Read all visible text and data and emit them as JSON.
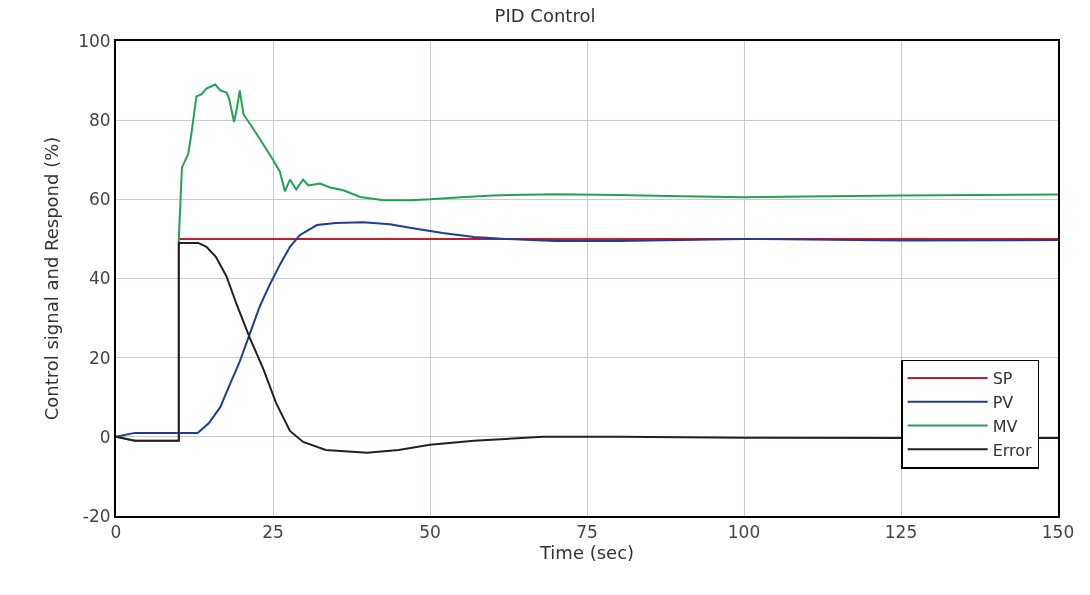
{
  "chart_data": {
    "type": "line",
    "title": "PID Control",
    "xlabel": "Time (sec)",
    "ylabel": "Control signal and Respond (%)",
    "xlim": [
      0,
      150
    ],
    "xticks": [
      0,
      25,
      50,
      75,
      100,
      125,
      150
    ],
    "ylim": [
      -20,
      100
    ],
    "yticks": [
      -20,
      0,
      20,
      40,
      60,
      80,
      100
    ],
    "grid": true,
    "legend": "bottom right",
    "marker": "none",
    "line_style": "solid",
    "series": [
      {
        "name": "SP",
        "color": "#c0202e",
        "x": [
          10,
          150
        ],
        "values": [
          50,
          50
        ]
      },
      {
        "name": "PV",
        "color": "#1f3c99",
        "x": [
          0,
          3,
          10,
          13,
          14.8,
          16.6,
          18.2,
          19.7,
          21.3,
          22.9,
          24.5,
          26.1,
          27.7,
          29.3,
          32,
          35,
          39.4,
          43.6,
          46.8,
          52,
          57,
          62,
          70,
          80,
          100,
          125,
          150
        ],
        "values": [
          0,
          1,
          1,
          1,
          3.5,
          7.5,
          13.5,
          19,
          26,
          33,
          38.5,
          43.5,
          48,
          51,
          53.5,
          54,
          54.2,
          53.7,
          52.8,
          51.5,
          50.5,
          50,
          49.5,
          49.5,
          50,
          49.6,
          49.7
        ]
      },
      {
        "name": "MV",
        "color": "#1fa355",
        "x": [
          0,
          3,
          10,
          10,
          10.5,
          11.5,
          12,
          12.8,
          13.6,
          14.4,
          15.8,
          16.6,
          17.6,
          18,
          18.8,
          19.3,
          19.7,
          20.3,
          22.4,
          24.8,
          26.1,
          26.9,
          27.7,
          28.7,
          29.8,
          30.6,
          32.5,
          34.1,
          36.2,
          38.9,
          42.6,
          46.8,
          50,
          55,
          60,
          70,
          80,
          90,
          100,
          110,
          125,
          150
        ],
        "values": [
          0,
          -1,
          -1,
          50,
          68,
          71.5,
          76.5,
          86,
          86.5,
          88,
          89,
          87.5,
          87,
          85.5,
          79.5,
          83.5,
          87.5,
          81.5,
          76.5,
          70.5,
          67,
          62,
          65,
          62.5,
          65,
          63.5,
          64,
          63,
          62.3,
          60.6,
          59.8,
          59.8,
          60,
          60.5,
          61,
          61.3,
          61.1,
          60.8,
          60.5,
          60.7,
          61,
          61.2
        ]
      },
      {
        "name": "Error",
        "color": "#222222",
        "x": [
          0,
          3,
          10,
          10,
          13.1,
          14.4,
          15.9,
          17.6,
          19.2,
          21.3,
          23.5,
          25.5,
          27.7,
          29.8,
          33.4,
          40,
          45,
          50,
          57,
          68,
          80,
          100,
          125,
          150
        ],
        "values": [
          0,
          -1,
          -1,
          49,
          49,
          48,
          45.5,
          40.5,
          33.5,
          25,
          17,
          8.5,
          1.5,
          -1.3,
          -3.3,
          -4,
          -3.3,
          -2,
          -1,
          0,
          0,
          -0.2,
          -0.3,
          -0.3
        ]
      }
    ]
  }
}
